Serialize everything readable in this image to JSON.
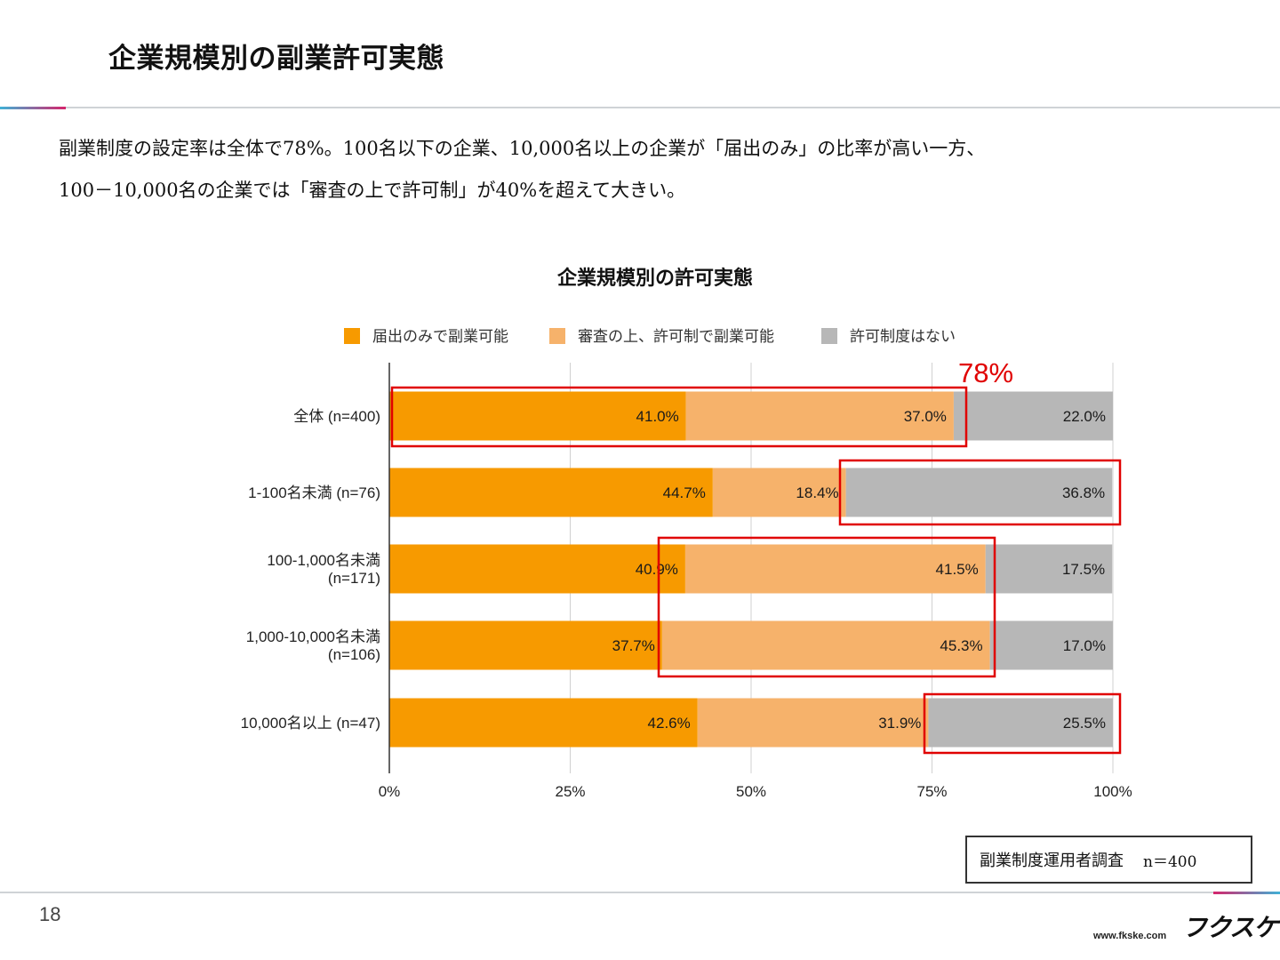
{
  "slide": {
    "title": "企業規模別の副業許可実態",
    "lead_line1": "副業制度の設定率は全体で78%。100名以下の企業、10,000名以上の企業が「届出のみ」の比率が高い一方、",
    "lead_line2": "100－10,000名の企業では「審査の上で許可制」が40%を超えて大きい。",
    "source_label": "副業制度運用者調査",
    "source_n": "n＝400",
    "page_number": "18",
    "logo_text": "フクスケ",
    "url": "www.fkske.com"
  },
  "chart_data": {
    "type": "bar",
    "orientation": "horizontal",
    "stacked": true,
    "title": "企業規模別の許可実態",
    "categories": [
      [
        "全体 (n=400)"
      ],
      [
        "1-100名未満 (n=76)"
      ],
      [
        "100-1,000名未満",
        "(n=171)"
      ],
      [
        "1,000-10,000名未満",
        "(n=106)"
      ],
      [
        "10,000名以上 (n=47)"
      ]
    ],
    "series": [
      {
        "name": "届出のみで副業可能",
        "color": "#f79a00",
        "values": [
          41.0,
          44.7,
          40.9,
          37.7,
          42.6
        ]
      },
      {
        "name": "審査の上、許可制で副業可能",
        "color": "#f6b26b",
        "values": [
          37.0,
          18.4,
          41.5,
          45.3,
          31.9
        ]
      },
      {
        "name": "許可制度はない",
        "color": "#b7b7b7",
        "values": [
          22.0,
          36.8,
          17.5,
          17.0,
          25.5
        ]
      }
    ],
    "xlim": [
      0,
      100
    ],
    "x_ticks": [
      "0%",
      "25%",
      "50%",
      "75%",
      "100%"
    ],
    "grid": true,
    "legend_position": "top",
    "annotation_text": "78%",
    "annotation_color": "#e00000",
    "highlight_color": "#e00000"
  }
}
